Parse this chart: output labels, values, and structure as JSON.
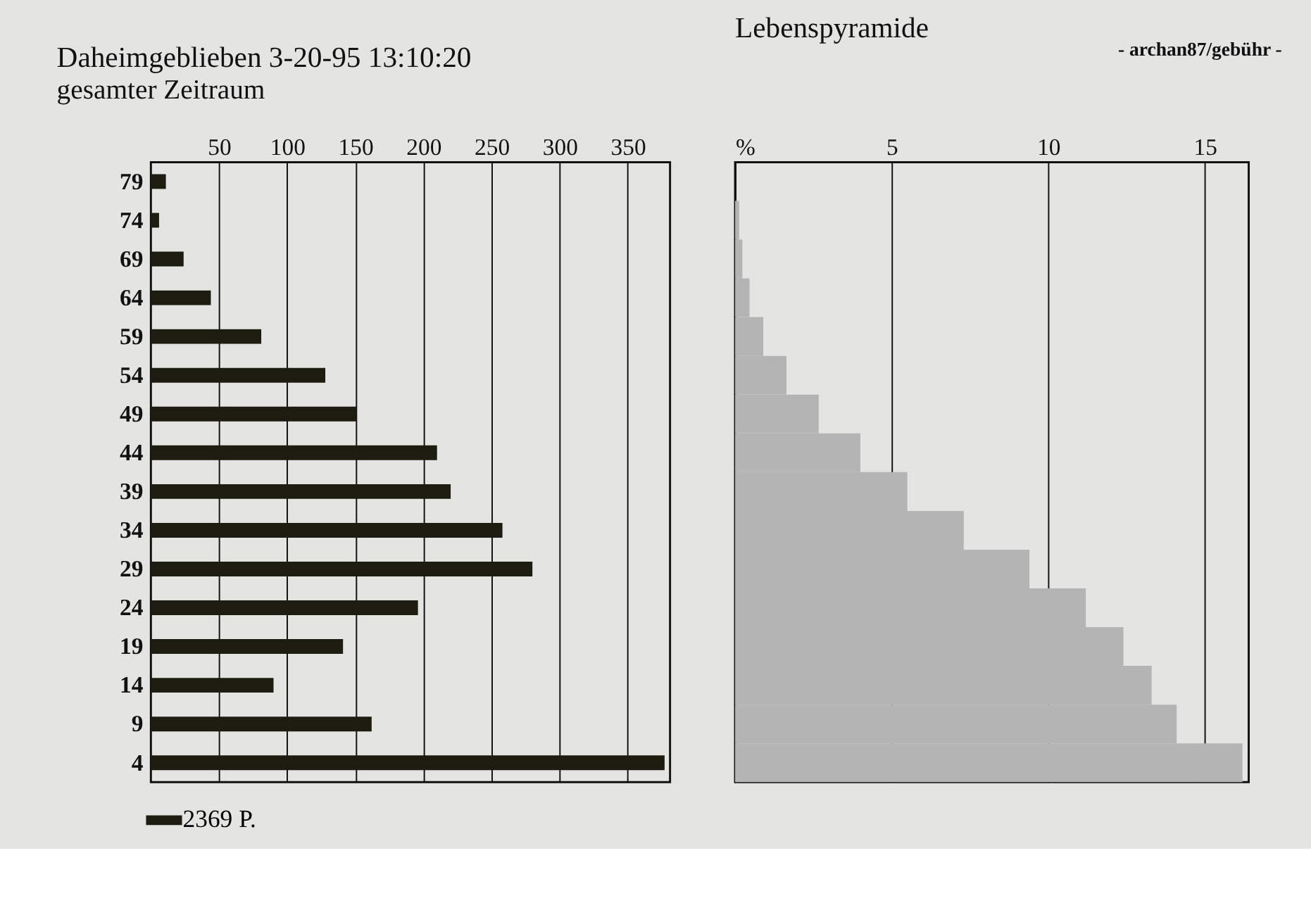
{
  "chart_data": [
    {
      "type": "bar",
      "orientation": "horizontal",
      "title": "Daheimgeblieben 3-20-95 13:10:20",
      "subtitle": "gesamter Zeitraum",
      "categories": [
        "79",
        "74",
        "69",
        "64",
        "59",
        "54",
        "49",
        "44",
        "39",
        "34",
        "29",
        "24",
        "19",
        "14",
        "9",
        "4"
      ],
      "series": [
        {
          "name": "2369 P.",
          "color": "#1c1c10",
          "values": [
            11,
            6,
            24,
            44,
            81,
            128,
            151,
            210,
            220,
            258,
            280,
            196,
            141,
            90,
            162,
            377
          ]
        }
      ],
      "xlim": [
        0,
        381
      ],
      "xticks": [
        50,
        100,
        150,
        200,
        250,
        300,
        350
      ],
      "grid": "x",
      "legend": "bottom"
    },
    {
      "type": "bar",
      "orientation": "horizontal",
      "title": "Lebenspyramide",
      "annotations": [
        "- archan87/gebühr -"
      ],
      "categories": [
        "79",
        "74",
        "69",
        "64",
        "59",
        "54",
        "49",
        "44",
        "39",
        "34",
        "29",
        "24",
        "19",
        "14",
        "9",
        "4"
      ],
      "series": [
        {
          "color": "#b4b4b4",
          "values": [
            null,
            0.13,
            0.23,
            0.46,
            0.9,
            1.64,
            2.67,
            4.0,
            5.5,
            7.3,
            9.4,
            11.2,
            12.4,
            13.3,
            14.1,
            16.2
          ]
        }
      ],
      "xlim": [
        0,
        16.4
      ],
      "xticks": [
        {
          "value": 0,
          "label": "%"
        },
        5,
        10,
        15
      ],
      "grid": "x",
      "tick_labels": "x"
    }
  ]
}
